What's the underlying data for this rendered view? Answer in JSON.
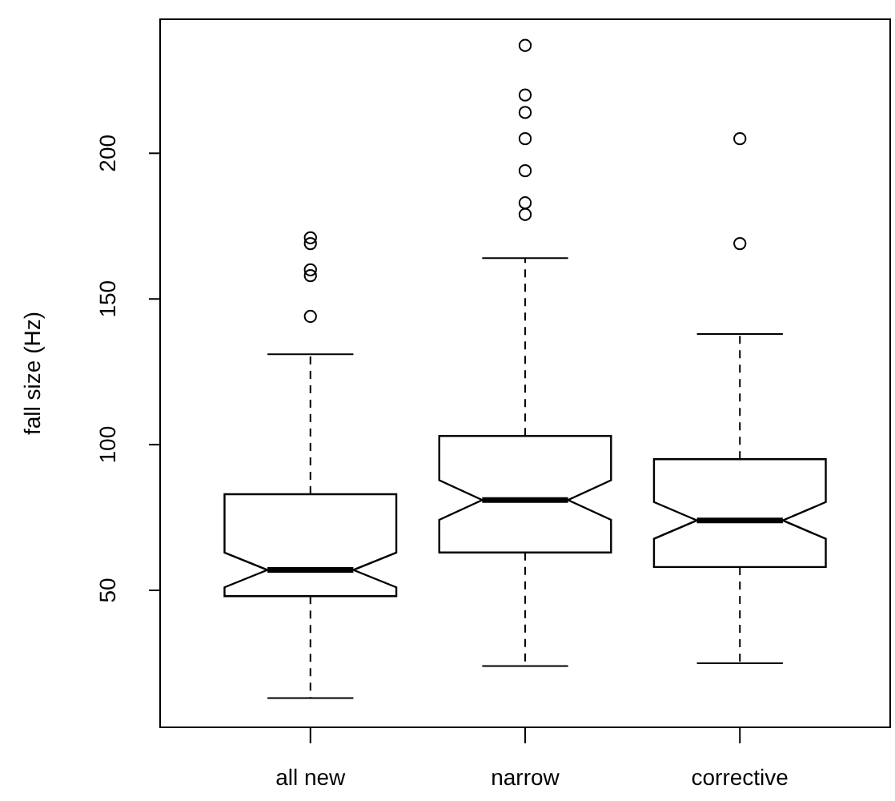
{
  "chart_data": {
    "type": "box",
    "ylabel": "fall size (Hz)",
    "categories": [
      "all new",
      "narrow",
      "corrective"
    ],
    "boxes": [
      {
        "low": 13,
        "q1": 48,
        "median": 57,
        "q3": 83,
        "high": 131,
        "outliers": [
          144,
          158,
          160,
          169,
          171
        ]
      },
      {
        "low": 24,
        "q1": 63,
        "median": 81,
        "q3": 103,
        "high": 164,
        "outliers": [
          237,
          220,
          214,
          205,
          194,
          183,
          179
        ]
      },
      {
        "low": 25,
        "q1": 58,
        "median": 74,
        "q3": 95,
        "high": 138,
        "outliers": [
          205,
          169
        ]
      }
    ],
    "ylim": [
      3,
      246
    ],
    "yticks": [
      50,
      100,
      150,
      200
    ]
  }
}
